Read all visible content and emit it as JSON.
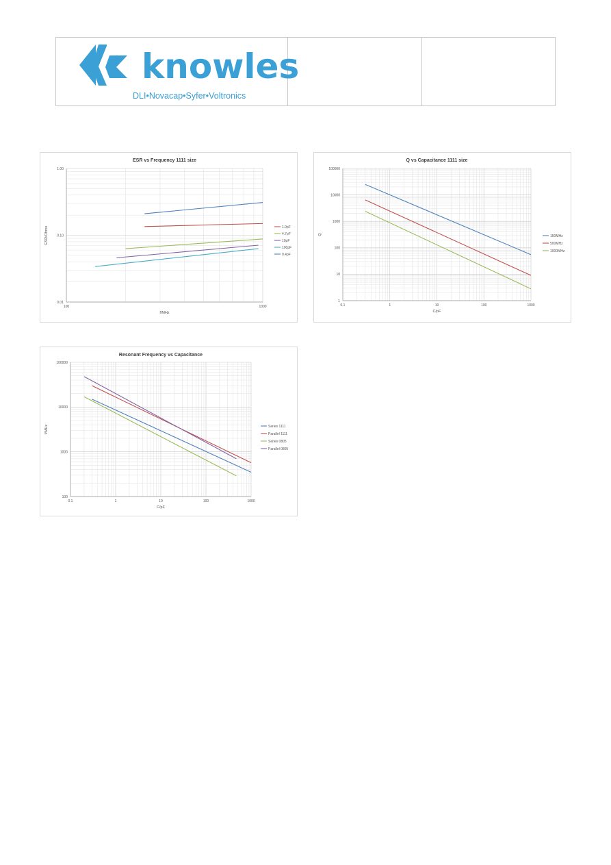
{
  "header": {
    "brand_name": "knowles",
    "brand_tagline": "DLI•Novacap•Syfer•Voltronics",
    "brand_color": "#3aa0d6",
    "logo_icon": "knowles-chevron-logo",
    "registered_mark": "®"
  },
  "chart_data": [
    {
      "type": "line",
      "title": "ESR vs Frequency 1111 size",
      "xlabel": "f/MHz",
      "ylabel": "ESR/Ohms",
      "xscale": "log",
      "yscale": "log",
      "xlim": [
        100,
        1000
      ],
      "ylim": [
        0.01,
        1.0
      ],
      "xticks": [
        "100",
        "1000"
      ],
      "yticks": [
        "0.01",
        "0.10",
        "1.00"
      ],
      "grid": true,
      "legend": "right",
      "series": [
        {
          "name": "1.0pF",
          "color": "#c0504d",
          "x": [
            250,
            1000
          ],
          "y": [
            0.135,
            0.15
          ]
        },
        {
          "name": "4.7pF",
          "color": "#9bbb59",
          "x": [
            200,
            1000
          ],
          "y": [
            0.063,
            0.088
          ]
        },
        {
          "name": "10pF",
          "color": "#8064a2",
          "x": [
            180,
            950
          ],
          "y": [
            0.046,
            0.071
          ]
        },
        {
          "name": "100pF",
          "color": "#4bacc6",
          "x": [
            140,
            950
          ],
          "y": [
            0.034,
            0.063
          ]
        },
        {
          "name": "0.4pF",
          "color": "#4f81bd",
          "x": [
            250,
            1000
          ],
          "y": [
            0.21,
            0.31
          ]
        }
      ]
    },
    {
      "type": "line",
      "title": "Q vs Capacitance 1111 size",
      "xlabel": "C/pF",
      "ylabel": "Q",
      "xscale": "log",
      "yscale": "log",
      "xlim": [
        0.1,
        1000
      ],
      "ylim": [
        1,
        100000
      ],
      "xticks": [
        "0.1",
        "1",
        "10",
        "100",
        "1000"
      ],
      "yticks": [
        "1",
        "10",
        "100",
        "1000",
        "10000",
        "100000"
      ],
      "grid": true,
      "legend": "right",
      "series": [
        {
          "name": "150MHz",
          "color": "#4f81bd",
          "x": [
            0.3,
            1000
          ],
          "y": [
            25000,
            55
          ]
        },
        {
          "name": "500MHz",
          "color": "#c0504d",
          "x": [
            0.3,
            1000
          ],
          "y": [
            6500,
            9
          ]
        },
        {
          "name": "1000MHz",
          "color": "#9bbb59",
          "x": [
            0.3,
            1000
          ],
          "y": [
            2400,
            2.8
          ]
        }
      ]
    },
    {
      "type": "line",
      "title": "Resonant Frequency vs Capacitance",
      "xlabel": "C/pF",
      "ylabel": "f/MHz",
      "xscale": "log",
      "yscale": "log",
      "xlim": [
        0.1,
        1000
      ],
      "ylim": [
        100,
        100000
      ],
      "xticks": [
        "0.1",
        "1",
        "10",
        "100",
        "1000"
      ],
      "yticks": [
        "100",
        "1000",
        "10000",
        "100000"
      ],
      "grid": true,
      "legend": "right",
      "series": [
        {
          "name": "Series 1111",
          "color": "#4f81bd",
          "x": [
            0.3,
            1000
          ],
          "y": [
            15000,
            350
          ]
        },
        {
          "name": "Parallel 1111",
          "color": "#c0504d",
          "x": [
            0.3,
            1000
          ],
          "y": [
            30000,
            570
          ]
        },
        {
          "name": "Series 0805",
          "color": "#9bbb59",
          "x": [
            0.2,
            470
          ],
          "y": [
            17000,
            290
          ]
        },
        {
          "name": "Parallel 0805",
          "color": "#8064a2",
          "x": [
            0.2,
            470
          ],
          "y": [
            48000,
            700
          ]
        }
      ]
    }
  ]
}
